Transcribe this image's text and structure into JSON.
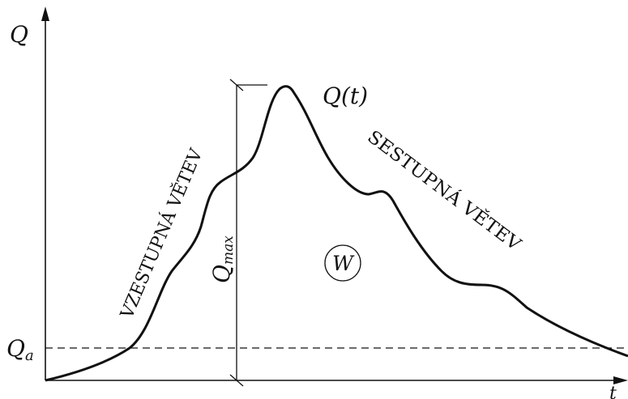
{
  "axes": {
    "y_label": "Q",
    "x_label": "t",
    "baseline_label_main": "Q",
    "baseline_label_sub": "a"
  },
  "curve": {
    "label": "Q(t)"
  },
  "branches": {
    "rising": "VZESTUPNÁ VĚTEV",
    "falling": "SESTUPNÁ VĚTEV"
  },
  "peak": {
    "label_main": "Q",
    "label_sub": "max"
  },
  "volume": {
    "label": "W"
  },
  "colors": {
    "ink": "#111111",
    "background": "#ffffff"
  }
}
